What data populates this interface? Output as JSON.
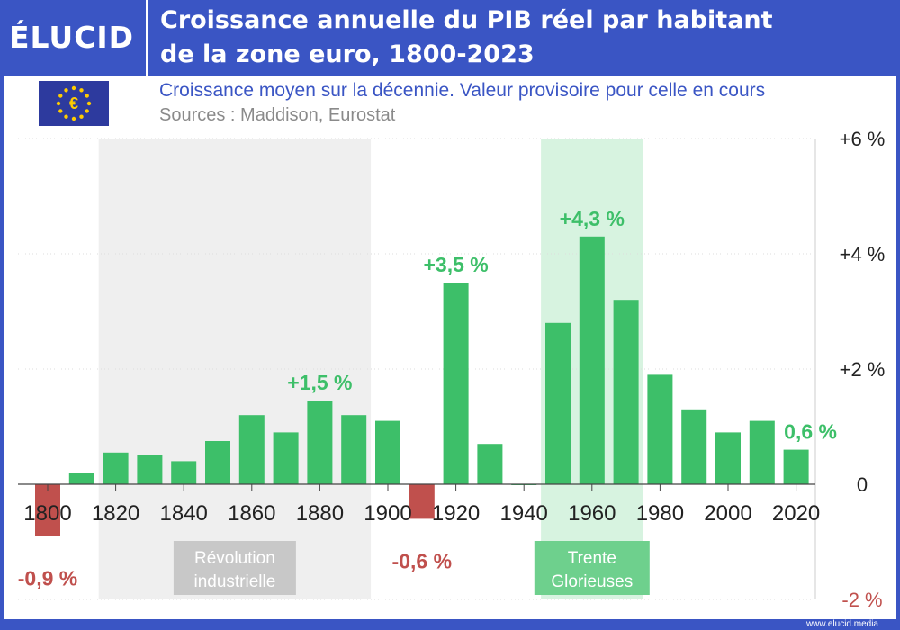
{
  "brand": {
    "logo_text": "ÉLUCID",
    "footer_url": "www.elucid.media"
  },
  "header": {
    "title_line1": "Croissance annuelle du PIB réel par habitant",
    "title_line2": "de la zone euro, 1800-2023"
  },
  "subtitle": "Croissance moyen sur la décennie. Valeur provisoire pour celle en cours",
  "sources": "Sources : Maddison, Eurostat",
  "colors": {
    "positive": "#3dbf69",
    "negative": "#c0504d",
    "positive_text": "#3dbf69",
    "negative_text": "#c0504d",
    "band_industrial": "#efefef",
    "band_glorieuses": "#d7f3e0",
    "grid": "#dddddd",
    "header_bg": "#3a55c4"
  },
  "chart_data": {
    "type": "bar",
    "title": "Croissance annuelle du PIB réel par habitant de la zone euro, 1800-2023",
    "xlabel": "",
    "ylabel": "",
    "ylim": [
      -2,
      6
    ],
    "x": [
      1800,
      1810,
      1820,
      1830,
      1840,
      1850,
      1860,
      1870,
      1880,
      1890,
      1900,
      1910,
      1920,
      1930,
      1940,
      1950,
      1960,
      1970,
      1980,
      1990,
      2000,
      2010,
      2020
    ],
    "values": [
      -0.9,
      0.2,
      0.55,
      0.5,
      0.4,
      0.75,
      1.2,
      0.9,
      1.45,
      1.2,
      1.1,
      -0.6,
      3.5,
      0.7,
      0.0,
      2.8,
      4.3,
      3.2,
      1.9,
      1.3,
      0.9,
      1.1,
      0.6
    ],
    "x_ticks": [
      "1800",
      "1820",
      "1840",
      "1860",
      "1880",
      "1900",
      "1920",
      "1940",
      "1960",
      "1980",
      "2000",
      "2020"
    ],
    "y_ticks": [
      {
        "value": 6,
        "label": "+6 %"
      },
      {
        "value": 4,
        "label": "+4 %"
      },
      {
        "value": 2,
        "label": "+2 %"
      },
      {
        "value": 0,
        "label": "0"
      },
      {
        "value": -2,
        "label": "-2 %"
      }
    ],
    "annotations": [
      {
        "x": 1800,
        "value": -0.9,
        "label": "-0,9 %",
        "kind": "negative"
      },
      {
        "x": 1880,
        "value": 1.45,
        "label": "+1,5 %",
        "kind": "positive"
      },
      {
        "x": 1910,
        "value": -0.6,
        "label": "-0,6 %",
        "kind": "negative"
      },
      {
        "x": 1920,
        "value": 3.5,
        "label": "+3,5 %",
        "kind": "positive"
      },
      {
        "x": 1960,
        "value": 4.3,
        "label": "+4,3 %",
        "kind": "positive"
      },
      {
        "x": 2020,
        "value": 0.6,
        "label": "0,6 %",
        "kind": "positive"
      }
    ],
    "bands": [
      {
        "start": 1815,
        "end": 1895,
        "label_line1": "Révolution",
        "label_line2": "industrielle",
        "kind": "industrial"
      },
      {
        "start": 1945,
        "end": 1975,
        "label_line1": "Trente",
        "label_line2": "Glorieuses",
        "kind": "glorieuses"
      }
    ]
  }
}
